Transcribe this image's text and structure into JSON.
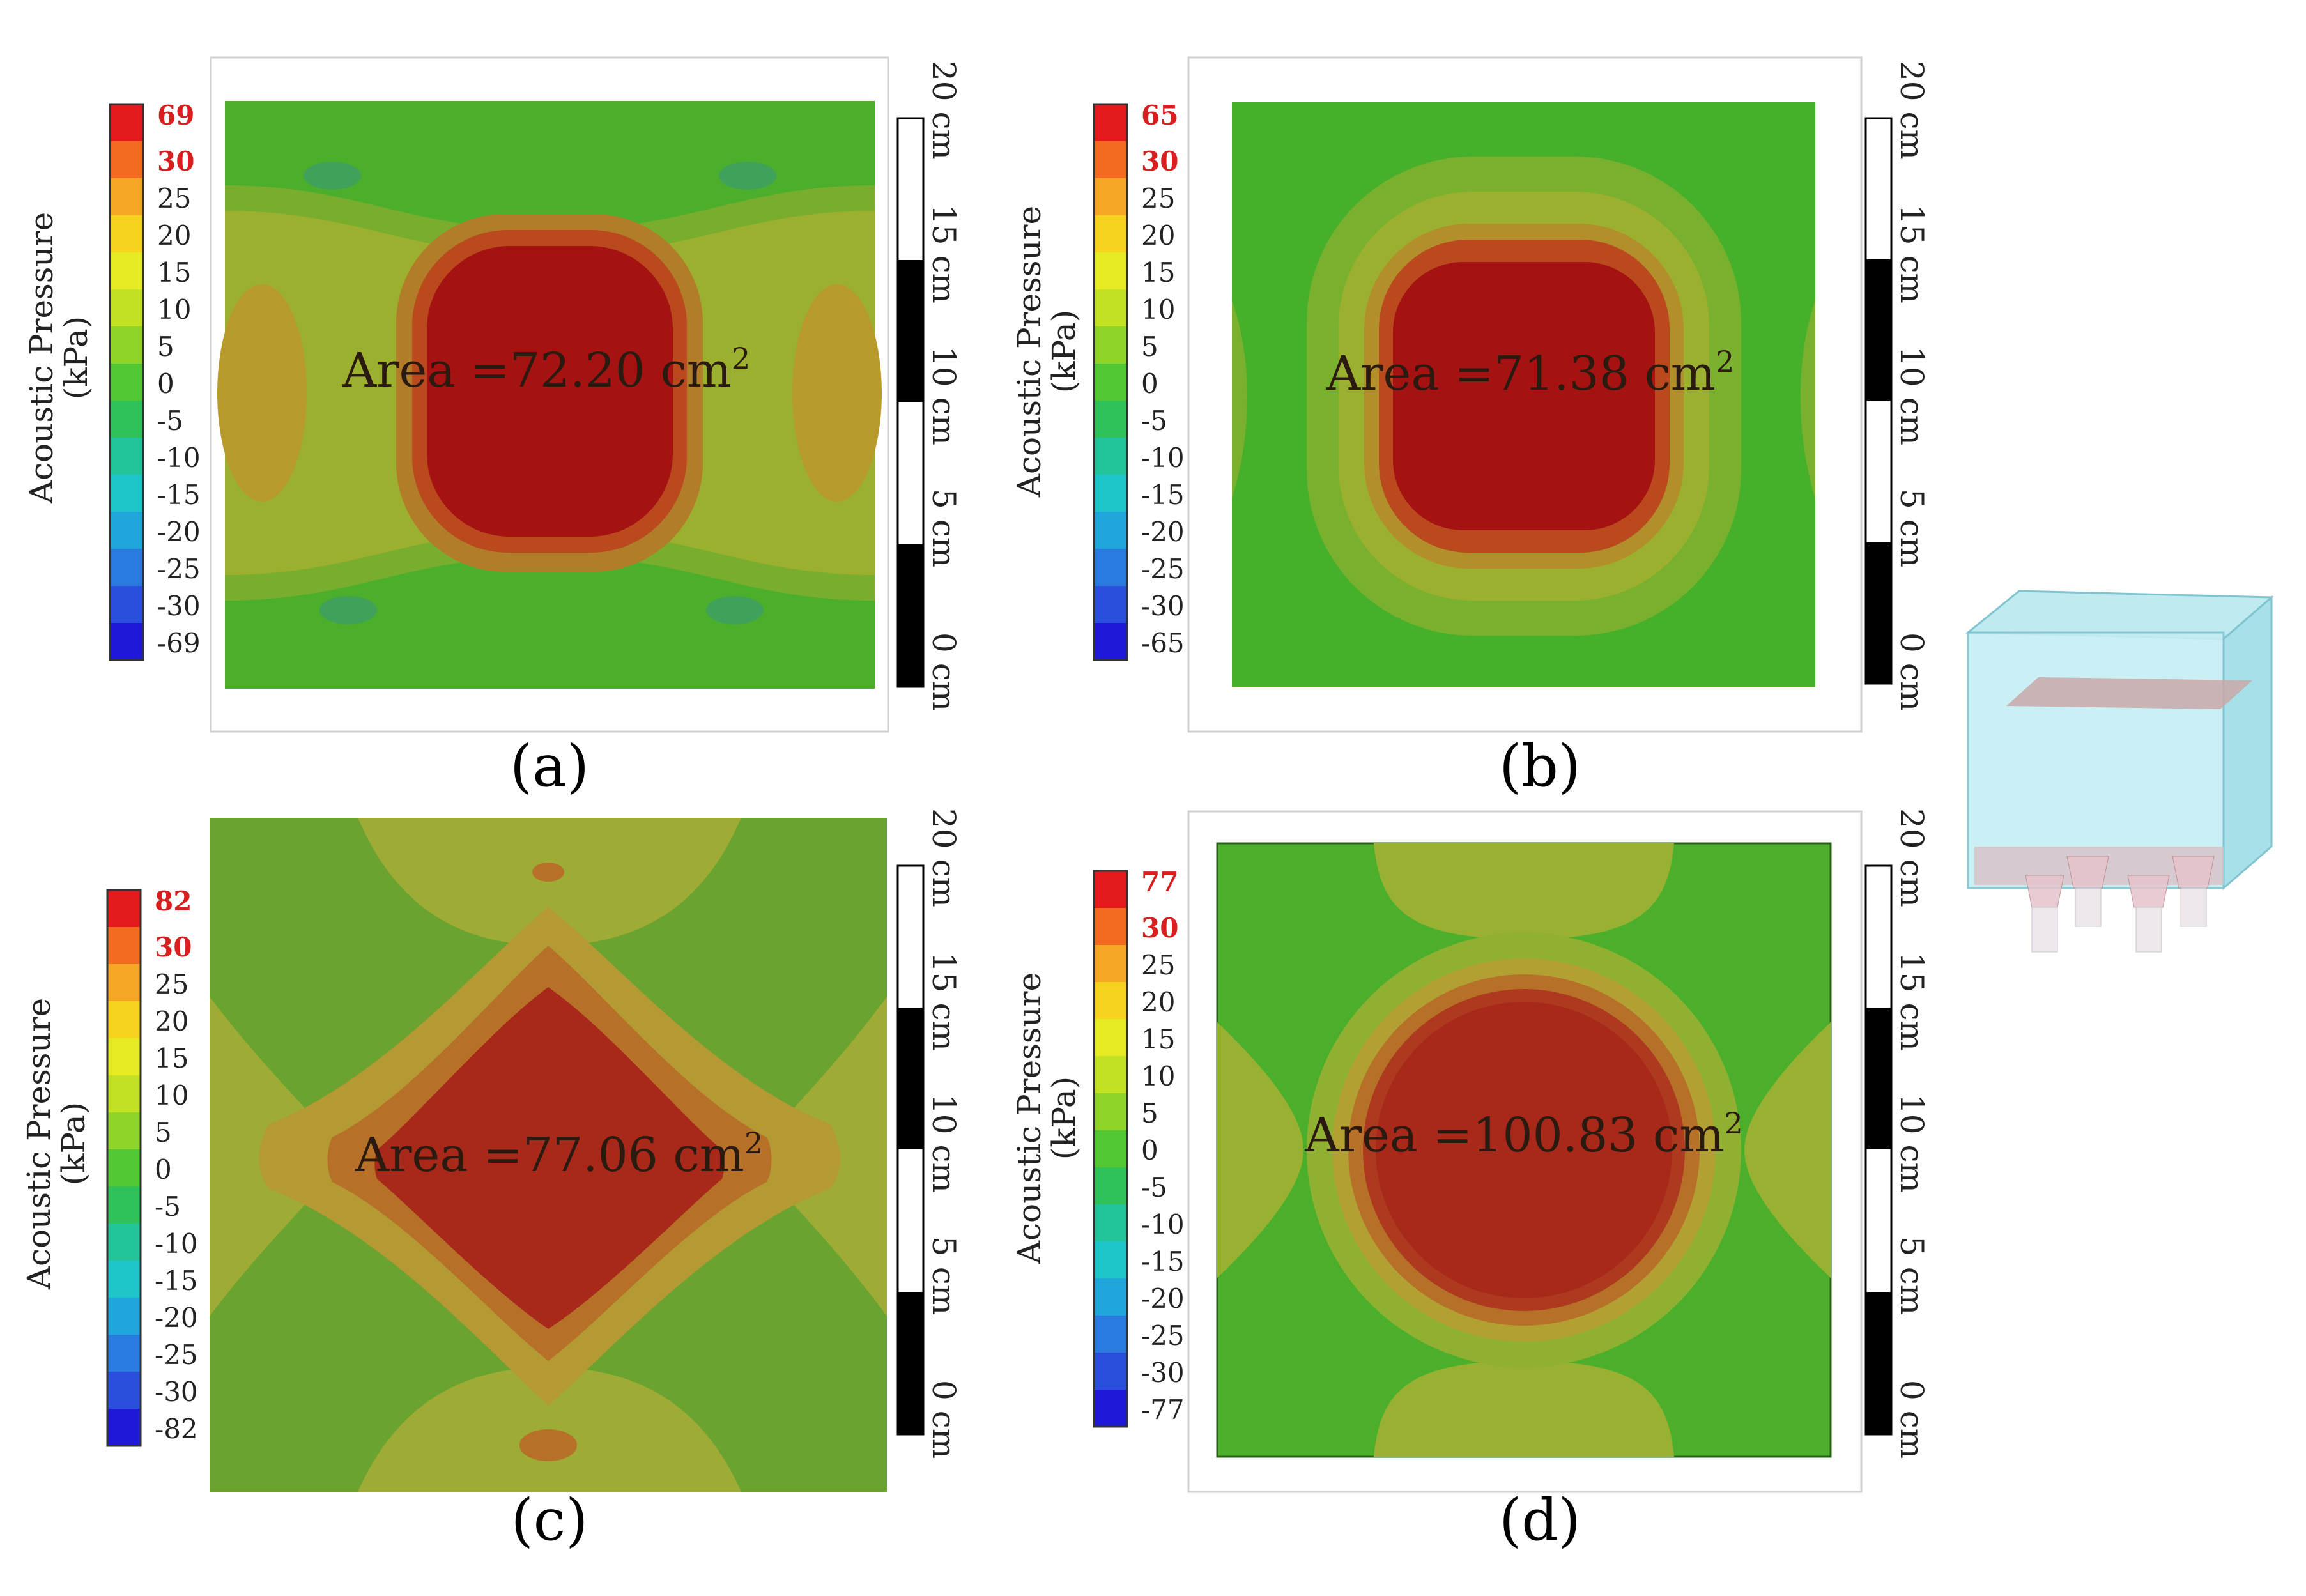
{
  "legend_title_line1": "Acoustic Pressure",
  "legend_title_line2": "(kPa)",
  "legend_colors": [
    "#e41a1c",
    "#f36b1f",
    "#f5a623",
    "#f5d31c",
    "#e6ea22",
    "#c2e123",
    "#8fd428",
    "#52c934",
    "#2fc25b",
    "#22c49a",
    "#1ec6c9",
    "#1fa7dc",
    "#2a7be0",
    "#2a4fdc",
    "#1f18d8"
  ],
  "scale_labels": [
    "20 cm",
    "15 cm",
    "10 cm",
    "5 cm",
    "0 cm"
  ],
  "panels": [
    {
      "id": "a",
      "caption": "(a)",
      "area_label": "Area =72.20 cm",
      "legend_values": [
        "69",
        "30",
        "25",
        "20",
        "15",
        "10",
        "5",
        "0",
        "-5",
        "-10",
        "-15",
        "-20",
        "-25",
        "-30",
        "-69"
      ]
    },
    {
      "id": "b",
      "caption": "(b)",
      "area_label": "Area =71.38 cm",
      "legend_values": [
        "65",
        "30",
        "25",
        "20",
        "15",
        "10",
        "5",
        "0",
        "-5",
        "-10",
        "-15",
        "-20",
        "-25",
        "-30",
        "-65"
      ]
    },
    {
      "id": "c",
      "caption": "(c)",
      "area_label": "Area =77.06 cm",
      "legend_values": [
        "82",
        "30",
        "25",
        "20",
        "15",
        "10",
        "5",
        "0",
        "-5",
        "-10",
        "-15",
        "-20",
        "-25",
        "-30",
        "-82"
      ]
    },
    {
      "id": "d",
      "caption": "(d)",
      "area_label": "Area =100.83 cm",
      "legend_values": [
        "77",
        "30",
        "25",
        "20",
        "15",
        "10",
        "5",
        "0",
        "-5",
        "-10",
        "-15",
        "-20",
        "-25",
        "-30",
        "-77"
      ]
    }
  ],
  "area_unit_superscript": "2",
  "highlight_value_color": "#d81e1e"
}
